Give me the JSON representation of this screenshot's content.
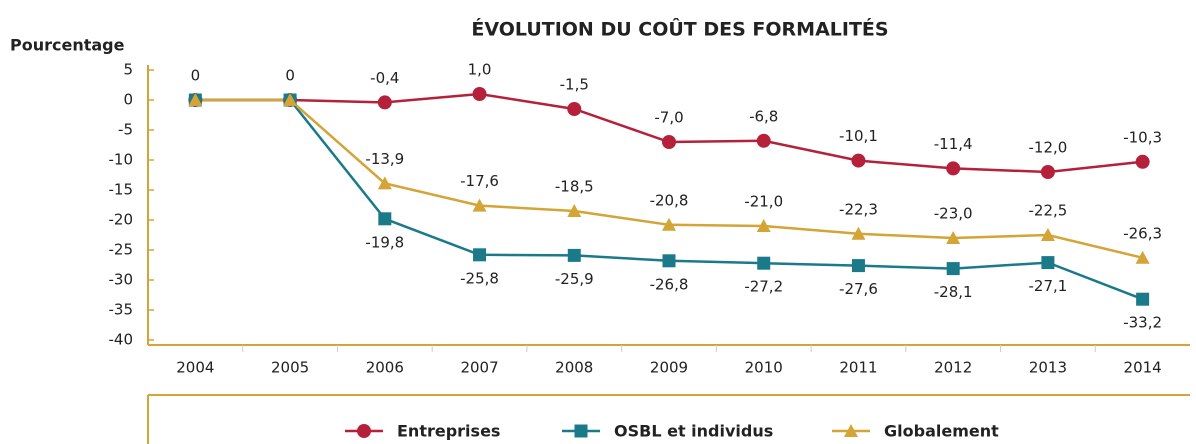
{
  "chart_data": {
    "type": "line",
    "title": "ÉVOLUTION DU COÛT DES FORMALITÉS",
    "y_label": "Pourcentage",
    "categories": [
      "2004",
      "2005",
      "2006",
      "2007",
      "2008",
      "2009",
      "2010",
      "2011",
      "2012",
      "2013",
      "2014"
    ],
    "ylim": [
      -40,
      5
    ],
    "yticks": [
      5,
      0,
      -5,
      -10,
      -15,
      -20,
      -25,
      -30,
      -35,
      -40
    ],
    "series": [
      {
        "name": "Entreprises",
        "color": "#b5203a",
        "marker": "circle",
        "label_position": "above",
        "values": [
          0,
          0,
          -0.4,
          1.0,
          -1.5,
          -7.0,
          -6.8,
          -10.1,
          -11.4,
          -12.0,
          -10.3
        ],
        "value_labels": [
          "0",
          "0",
          "-0,4",
          "1,0",
          "-1,5",
          "-7,0",
          "-6,8",
          "-10,1",
          "-11,4",
          "-12,0",
          "-10,3"
        ]
      },
      {
        "name": "OSBL et individus",
        "color": "#1a7a8a",
        "marker": "square",
        "label_position": "below",
        "values": [
          0,
          0,
          -19.8,
          -25.8,
          -25.9,
          -26.8,
          -27.2,
          -27.6,
          -28.1,
          -27.1,
          -33.2
        ],
        "value_labels": [
          null,
          null,
          "-19,8",
          "-25,8",
          "-25,9",
          "-26,8",
          "-27,2",
          "-27,6",
          "-28,1",
          "-27,1",
          "-33,2"
        ]
      },
      {
        "name": "Globalement",
        "color": "#d4a437",
        "marker": "triangle",
        "label_position": "above",
        "values": [
          0,
          0,
          -13.9,
          -17.6,
          -18.5,
          -20.8,
          -21.0,
          -22.3,
          -23.0,
          -22.5,
          -26.3
        ],
        "value_labels": [
          null,
          null,
          "-13,9",
          "-17,6",
          "-18,5",
          "-20,8",
          "-21,0",
          "-22,3",
          "-23,0",
          "-22,5",
          "-26,3"
        ]
      }
    ]
  }
}
